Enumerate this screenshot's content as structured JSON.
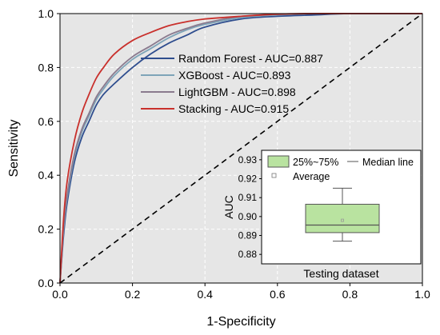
{
  "chart_data": [
    {
      "type": "line",
      "title": "",
      "xlabel": "1-Specificity",
      "ylabel": "Sensitivity",
      "xlim": [
        0.0,
        1.0
      ],
      "ylim": [
        0.0,
        1.0
      ],
      "xticks": [
        "0.0",
        "0.2",
        "0.4",
        "0.6",
        "0.8",
        "1.0"
      ],
      "yticks": [
        "0.0",
        "0.2",
        "0.4",
        "0.6",
        "0.8",
        "1.0"
      ],
      "grid": true,
      "background": "#e6e6e6",
      "legend_placement": "top-center",
      "series": [
        {
          "name": "Random Forest - AUC=0.887",
          "color": "#2e4d8e",
          "x": [
            0,
            0.01,
            0.02,
            0.04,
            0.06,
            0.08,
            0.1,
            0.12,
            0.15,
            0.2,
            0.25,
            0.3,
            0.35,
            0.4,
            0.5,
            0.6,
            0.7,
            0.8,
            1.0
          ],
          "y": [
            0,
            0.18,
            0.3,
            0.45,
            0.54,
            0.6,
            0.66,
            0.7,
            0.74,
            0.8,
            0.85,
            0.89,
            0.92,
            0.95,
            0.98,
            0.99,
            0.995,
            1.0,
            1.0
          ]
        },
        {
          "name": "XGBoost - AUC=0.893",
          "color": "#7ea4b8",
          "x": [
            0,
            0.01,
            0.02,
            0.04,
            0.06,
            0.08,
            0.1,
            0.12,
            0.15,
            0.2,
            0.25,
            0.3,
            0.35,
            0.4,
            0.5,
            0.6,
            0.7,
            0.8,
            1.0
          ],
          "y": [
            0,
            0.2,
            0.32,
            0.47,
            0.56,
            0.62,
            0.68,
            0.72,
            0.77,
            0.83,
            0.87,
            0.91,
            0.94,
            0.96,
            0.985,
            0.995,
            1.0,
            1.0,
            1.0
          ]
        },
        {
          "name": "LightGBM - AUC=0.898",
          "color": "#8a7a8e",
          "x": [
            0,
            0.01,
            0.02,
            0.04,
            0.06,
            0.08,
            0.1,
            0.12,
            0.15,
            0.2,
            0.25,
            0.3,
            0.35,
            0.4,
            0.5,
            0.6,
            0.7,
            0.8,
            1.0
          ],
          "y": [
            0,
            0.21,
            0.33,
            0.48,
            0.57,
            0.63,
            0.69,
            0.73,
            0.78,
            0.84,
            0.88,
            0.92,
            0.945,
            0.965,
            0.99,
            0.997,
            1.0,
            1.0,
            1.0
          ]
        },
        {
          "name": "Stacking - AUC=0.915",
          "color": "#c9302c",
          "x": [
            0,
            0.01,
            0.02,
            0.04,
            0.06,
            0.08,
            0.1,
            0.12,
            0.15,
            0.2,
            0.25,
            0.3,
            0.35,
            0.4,
            0.5,
            0.6,
            0.7,
            0.8,
            1.0
          ],
          "y": [
            0,
            0.24,
            0.38,
            0.53,
            0.63,
            0.7,
            0.76,
            0.8,
            0.85,
            0.9,
            0.93,
            0.955,
            0.97,
            0.98,
            0.99,
            0.998,
            1.0,
            1.0,
            1.0
          ]
        },
        {
          "name": "",
          "color": "#000000",
          "style": "dashed",
          "x": [
            0,
            1
          ],
          "y": [
            0,
            1
          ]
        }
      ]
    },
    {
      "type": "box",
      "title": "",
      "xlabel": "Testing dataset",
      "ylabel": "AUC",
      "ylim": [
        0.875,
        0.935
      ],
      "yticks": [
        "0.88",
        "0.89",
        "0.90",
        "0.91",
        "0.92",
        "0.93"
      ],
      "box": {
        "min": 0.887,
        "q1": 0.8915,
        "median": 0.8955,
        "q3": 0.9065,
        "max": 0.915,
        "mean": 0.898
      },
      "fill_color": "#b9e3a0",
      "legend": [
        {
          "label": "25%~75%",
          "kind": "box"
        },
        {
          "label": "Median line",
          "kind": "line"
        },
        {
          "label": "Average",
          "kind": "marker"
        }
      ]
    }
  ]
}
